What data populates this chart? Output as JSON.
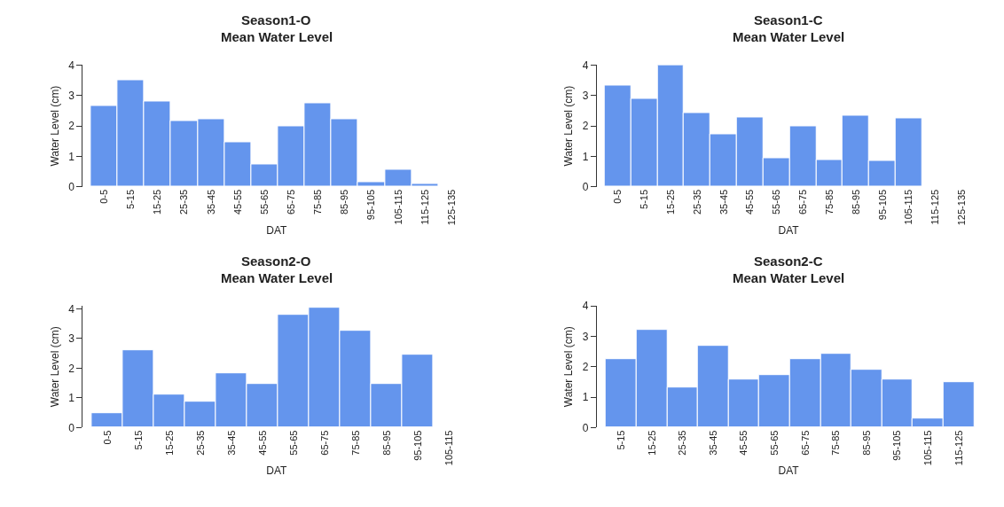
{
  "chart_data": [
    {
      "type": "bar",
      "title": "Season1-O",
      "subtitle": "Mean Water Level",
      "xlabel": "DAT",
      "ylabel": "Water Level (cm)",
      "categories": [
        "0-5",
        "5-15",
        "15-25",
        "25-35",
        "35-45",
        "45-55",
        "55-65",
        "65-75",
        "75-85",
        "85-95",
        "95-105",
        "105-115",
        "115-125",
        "125-135"
      ],
      "values": [
        2.66,
        3.5,
        2.81,
        2.16,
        2.23,
        1.45,
        0.73,
        1.98,
        2.76,
        2.21,
        0.14,
        0.56,
        0.1,
        null
      ],
      "color": "#6495ed",
      "ylim": [
        0,
        4
      ],
      "yticks": [
        0,
        1,
        2,
        3,
        4
      ]
    },
    {
      "type": "bar",
      "title": "Season1-C",
      "subtitle": "Mean Water Level",
      "xlabel": "DAT",
      "ylabel": "Water Level (cm)",
      "categories": [
        "0-5",
        "5-15",
        "15-25",
        "25-35",
        "35-45",
        "45-55",
        "55-65",
        "65-75",
        "75-85",
        "85-95",
        "95-105",
        "105-115",
        "115-125",
        "125-135"
      ],
      "values": [
        3.33,
        2.89,
        4.0,
        2.42,
        1.74,
        2.28,
        0.93,
        1.99,
        0.88,
        2.34,
        0.85,
        2.24,
        null,
        null
      ],
      "color": "#6495ed",
      "ylim": [
        0,
        4
      ],
      "yticks": [
        0,
        1,
        2,
        3,
        4
      ]
    },
    {
      "type": "bar",
      "title": "Season2-O",
      "subtitle": "Mean Water Level",
      "xlabel": "DAT",
      "ylabel": "Water Level (cm)",
      "categories": [
        "0-5",
        "5-15",
        "15-25",
        "25-35",
        "35-45",
        "45-55",
        "55-65",
        "65-75",
        "75-85",
        "85-95",
        "95-105",
        "105-115"
      ],
      "values": [
        0.47,
        2.6,
        1.12,
        0.87,
        1.82,
        1.48,
        3.79,
        4.05,
        3.27,
        1.48,
        2.47,
        null
      ],
      "color": "#6495ed",
      "ylim": [
        0,
        4.1
      ],
      "yticks": [
        0,
        1,
        2,
        3,
        4
      ]
    },
    {
      "type": "bar",
      "title": "Season2-C",
      "subtitle": "Mean Water Level",
      "xlabel": "DAT",
      "ylabel": "Water Level (cm)",
      "categories": [
        "5-15",
        "15-25",
        "25-35",
        "35-45",
        "45-55",
        "55-65",
        "65-75",
        "75-85",
        "85-95",
        "95-105",
        "105-115",
        "115-125"
      ],
      "values": [
        2.24,
        3.21,
        1.32,
        2.68,
        1.58,
        1.73,
        2.24,
        2.44,
        1.91,
        1.58,
        0.29,
        1.48
      ],
      "color": "#6495ed",
      "ylim": [
        0,
        4
      ],
      "yticks": [
        0,
        1,
        2,
        3,
        4
      ]
    }
  ]
}
